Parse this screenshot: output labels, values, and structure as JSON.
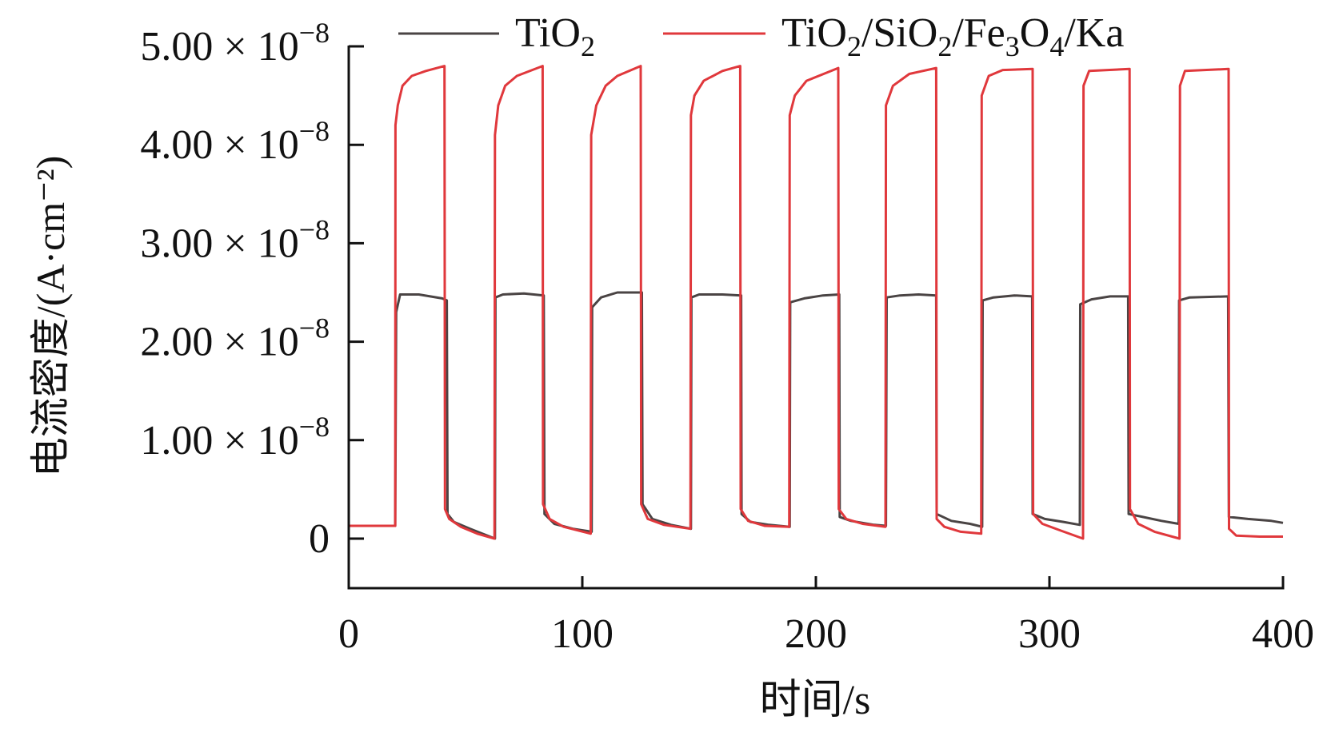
{
  "chart_data": {
    "type": "line",
    "title": "",
    "xlabel": "时间/s",
    "ylabel": "电流密度/(A·cm⁻²)",
    "xlim": [
      0,
      400
    ],
    "ylim": [
      -0.5,
      5
    ],
    "y_unit_multiplier": "1e-8",
    "grid": false,
    "legend_placement": "top",
    "x_ticks": [
      {
        "value": 0,
        "label": "0"
      },
      {
        "value": 100,
        "label": "100"
      },
      {
        "value": 200,
        "label": "200"
      },
      {
        "value": 300,
        "label": "300"
      },
      {
        "value": 400,
        "label": "400"
      }
    ],
    "y_ticks": [
      {
        "value": 0,
        "mantissa": "0",
        "times": "",
        "base": "",
        "exp": ""
      },
      {
        "value": 1,
        "mantissa": "1.00",
        "times": "×",
        "base": "10",
        "exp": "−8"
      },
      {
        "value": 2,
        "mantissa": "2.00",
        "times": "×",
        "base": "10",
        "exp": "−8"
      },
      {
        "value": 3,
        "mantissa": "3.00",
        "times": "×",
        "base": "10",
        "exp": "−8"
      },
      {
        "value": 4,
        "mantissa": "4.00",
        "times": "×",
        "base": "10",
        "exp": "−8"
      },
      {
        "value": 5,
        "mantissa": "5.00",
        "times": "×",
        "base": "10",
        "exp": "−8"
      }
    ],
    "series": [
      {
        "name": "TiO2",
        "label_parts": [
          {
            "t": "TiO"
          },
          {
            "t": "2",
            "sub": true
          }
        ],
        "color": "#4a4444",
        "points": [
          [
            0,
            0.13
          ],
          [
            19.9,
            0.13
          ],
          [
            20.3,
            2.3
          ],
          [
            22,
            2.48
          ],
          [
            30,
            2.48
          ],
          [
            40,
            2.44
          ],
          [
            42,
            2.42
          ],
          [
            42.3,
            0.25
          ],
          [
            45,
            0.17
          ],
          [
            52,
            0.1
          ],
          [
            62.6,
            0.0
          ],
          [
            62.8,
            2.45
          ],
          [
            66,
            2.48
          ],
          [
            75,
            2.49
          ],
          [
            83.5,
            2.47
          ],
          [
            83.8,
            0.25
          ],
          [
            88,
            0.15
          ],
          [
            96,
            0.1
          ],
          [
            104,
            0.07
          ],
          [
            104.2,
            2.35
          ],
          [
            108,
            2.45
          ],
          [
            115,
            2.5
          ],
          [
            125.5,
            2.5
          ],
          [
            125.8,
            0.35
          ],
          [
            130,
            0.2
          ],
          [
            138,
            0.14
          ],
          [
            146.5,
            0.1
          ],
          [
            146.7,
            2.45
          ],
          [
            150,
            2.48
          ],
          [
            160,
            2.48
          ],
          [
            168,
            2.47
          ],
          [
            168.2,
            0.25
          ],
          [
            172,
            0.17
          ],
          [
            180,
            0.14
          ],
          [
            188.8,
            0.12
          ],
          [
            189,
            2.4
          ],
          [
            195,
            2.44
          ],
          [
            203,
            2.47
          ],
          [
            210,
            2.48
          ],
          [
            210.2,
            0.22
          ],
          [
            215,
            0.18
          ],
          [
            225,
            0.14
          ],
          [
            230,
            0.13
          ],
          [
            230.3,
            2.45
          ],
          [
            236,
            2.47
          ],
          [
            244,
            2.48
          ],
          [
            251.5,
            2.47
          ],
          [
            251.7,
            0.25
          ],
          [
            258,
            0.18
          ],
          [
            266,
            0.15
          ],
          [
            271.2,
            0.12
          ],
          [
            271.4,
            2.42
          ],
          [
            276,
            2.45
          ],
          [
            285,
            2.47
          ],
          [
            292.6,
            2.46
          ],
          [
            292.8,
            0.25
          ],
          [
            298,
            0.2
          ],
          [
            306,
            0.17
          ],
          [
            313,
            0.14
          ],
          [
            313.2,
            2.38
          ],
          [
            318,
            2.43
          ],
          [
            326,
            2.46
          ],
          [
            333.7,
            2.46
          ],
          [
            333.9,
            0.25
          ],
          [
            340,
            0.22
          ],
          [
            348,
            0.18
          ],
          [
            355.3,
            0.15
          ],
          [
            355.5,
            2.42
          ],
          [
            360,
            2.45
          ],
          [
            376.5,
            2.46
          ],
          [
            376.8,
            0.22
          ],
          [
            385,
            0.2
          ],
          [
            395,
            0.18
          ],
          [
            400,
            0.16
          ]
        ]
      },
      {
        "name": "TiO2/SiO2/Fe3O4/Ka",
        "label_parts": [
          {
            "t": "TiO"
          },
          {
            "t": "2",
            "sub": true
          },
          {
            "t": "/SiO"
          },
          {
            "t": "2",
            "sub": true
          },
          {
            "t": "/Fe"
          },
          {
            "t": "3",
            "sub": true
          },
          {
            "t": "O"
          },
          {
            "t": "4",
            "sub": true
          },
          {
            "t": "/Ka"
          }
        ],
        "color": "#e0383c",
        "points": [
          [
            0,
            0.13
          ],
          [
            19.9,
            0.13
          ],
          [
            20,
            4.2
          ],
          [
            21,
            4.4
          ],
          [
            23,
            4.6
          ],
          [
            27,
            4.7
          ],
          [
            33,
            4.75
          ],
          [
            41,
            4.8
          ],
          [
            41.2,
            0.3
          ],
          [
            43,
            0.2
          ],
          [
            48,
            0.12
          ],
          [
            55,
            0.05
          ],
          [
            62.4,
            0.0
          ],
          [
            62.6,
            4.1
          ],
          [
            64,
            4.4
          ],
          [
            67,
            4.6
          ],
          [
            72,
            4.7
          ],
          [
            83,
            4.8
          ],
          [
            83.2,
            0.35
          ],
          [
            86,
            0.2
          ],
          [
            92,
            0.12
          ],
          [
            103.6,
            0.05
          ],
          [
            103.8,
            4.1
          ],
          [
            106,
            4.4
          ],
          [
            110,
            4.6
          ],
          [
            115,
            4.7
          ],
          [
            125,
            4.8
          ],
          [
            125.2,
            0.35
          ],
          [
            128,
            0.2
          ],
          [
            135,
            0.14
          ],
          [
            146.3,
            0.1
          ],
          [
            146.5,
            4.3
          ],
          [
            148,
            4.5
          ],
          [
            152,
            4.65
          ],
          [
            160,
            4.75
          ],
          [
            167.6,
            4.8
          ],
          [
            167.8,
            0.3
          ],
          [
            171,
            0.18
          ],
          [
            178,
            0.13
          ],
          [
            188.6,
            0.12
          ],
          [
            188.8,
            4.3
          ],
          [
            191,
            4.5
          ],
          [
            196,
            4.65
          ],
          [
            209.6,
            4.78
          ],
          [
            209.8,
            0.3
          ],
          [
            213,
            0.2
          ],
          [
            220,
            0.15
          ],
          [
            229.8,
            0.12
          ],
          [
            230,
            4.4
          ],
          [
            233,
            4.6
          ],
          [
            240,
            4.72
          ],
          [
            251.5,
            4.78
          ],
          [
            251.7,
            0.2
          ],
          [
            255,
            0.12
          ],
          [
            262,
            0.07
          ],
          [
            270.8,
            0.05
          ],
          [
            271,
            4.5
          ],
          [
            274,
            4.7
          ],
          [
            280,
            4.76
          ],
          [
            292.8,
            4.77
          ],
          [
            293,
            0.25
          ],
          [
            297,
            0.15
          ],
          [
            305,
            0.08
          ],
          [
            314.4,
            0.0
          ],
          [
            314.6,
            4.6
          ],
          [
            317,
            4.75
          ],
          [
            334.3,
            4.77
          ],
          [
            334.5,
            0.3
          ],
          [
            338,
            0.15
          ],
          [
            345,
            0.07
          ],
          [
            355.7,
            0.0
          ],
          [
            355.9,
            4.6
          ],
          [
            358,
            4.75
          ],
          [
            376.7,
            4.77
          ],
          [
            376.9,
            0.1
          ],
          [
            380,
            0.03
          ],
          [
            390,
            0.02
          ],
          [
            400,
            0.02
          ]
        ]
      }
    ]
  }
}
